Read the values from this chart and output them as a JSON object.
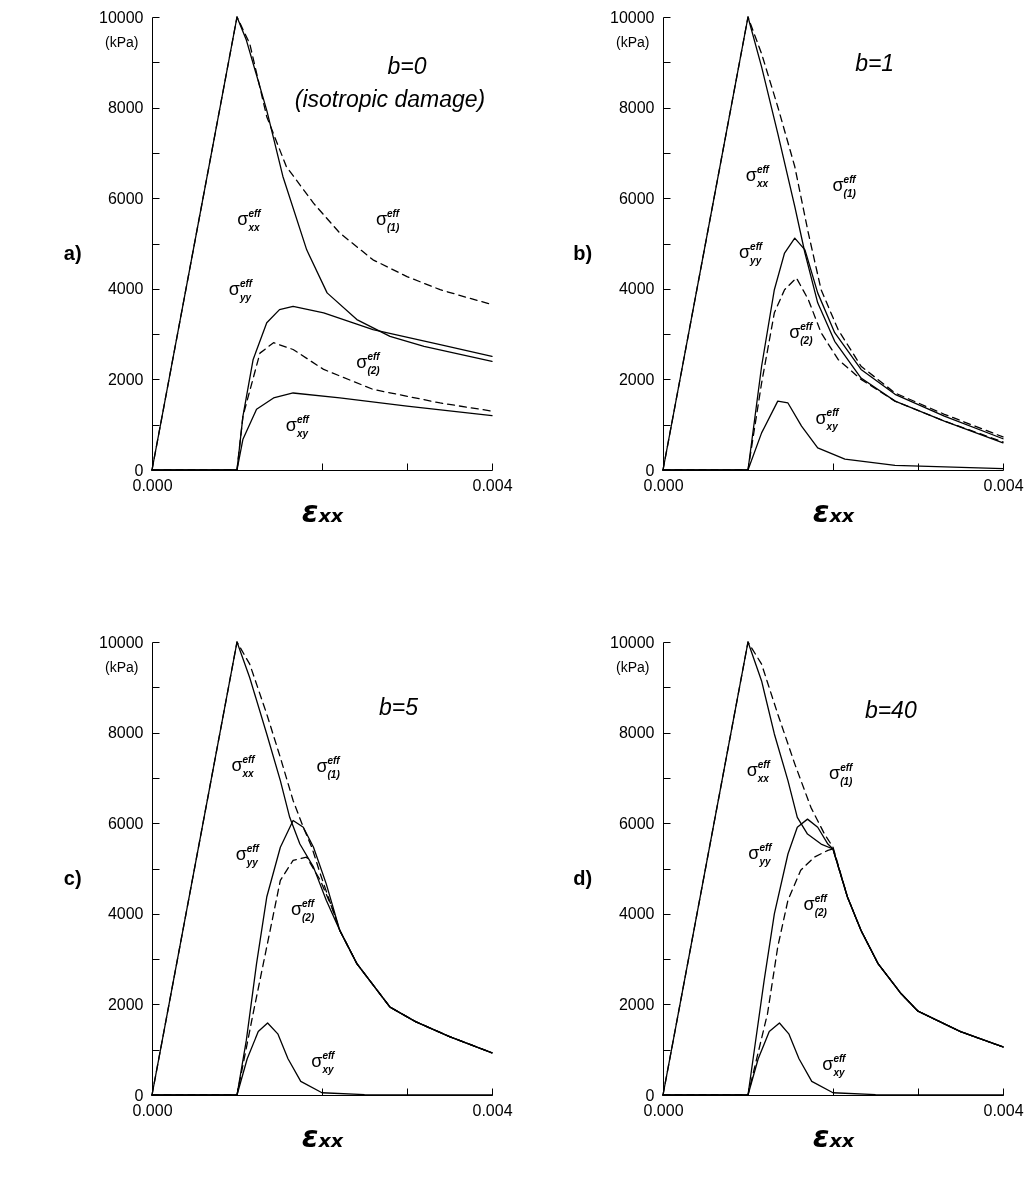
{
  "chart_data": [
    {
      "type": "line",
      "title": "a)",
      "xlabel": "εₓₓ",
      "ylabel": "(kPa)",
      "xlim": [
        0,
        0.004
      ],
      "ylim": [
        0,
        10000
      ],
      "xticks": [
        {
          "value": 0,
          "label": "0.000"
        },
        {
          "value": 0.001,
          "label": null
        },
        {
          "value": 0.002,
          "label": null
        },
        {
          "value": 0.003,
          "label": null
        },
        {
          "value": 0.004,
          "label": "0.004"
        }
      ],
      "yticks": [
        0,
        {
          "value": 1000,
          "label": null
        },
        2000,
        {
          "value": 3000,
          "label": null
        },
        4000,
        {
          "value": 5000,
          "label": null
        },
        6000,
        {
          "value": 7000,
          "label": null
        },
        8000,
        {
          "value": 9000,
          "label": null
        },
        10000
      ],
      "series": [
        {
          "color": "#000000",
          "line_style": "solid",
          "x": [
            0,
            0.001,
            0.00111,
            0.00135,
            0.00154,
            0.00182,
            0.00206,
            0.00241,
            0.0028,
            0.0032,
            0.004
          ],
          "values": [
            0,
            10000,
            9490,
            7940,
            6480,
            4860,
            3910,
            3320,
            2950,
            2730,
            2400
          ]
        },
        {
          "color": "#000000",
          "line_style": "dashed",
          "x": [
            0,
            0.001,
            0.00115,
            0.00135,
            0.00158,
            0.0019,
            0.00221,
            0.0026,
            0.003,
            0.00339,
            0.004
          ],
          "values": [
            0,
            10000,
            9410,
            7800,
            6700,
            5890,
            5230,
            4640,
            4270,
            3980,
            3650
          ]
        },
        {
          "color": "#000000",
          "line_style": "solid",
          "x": [
            0,
            0.001,
            0.00107,
            0.00119,
            0.00135,
            0.0015,
            0.00166,
            0.00202,
            0.0026,
            0.00339,
            0.004
          ],
          "values": [
            0,
            0,
            1190,
            2440,
            3250,
            3540,
            3610,
            3470,
            3100,
            2770,
            2510
          ]
        },
        {
          "color": "#000000",
          "line_style": "dashed",
          "x": [
            0,
            0.001,
            0.00107,
            0.00127,
            0.00143,
            0.00166,
            0.00202,
            0.0026,
            0.00339,
            0.004
          ],
          "values": [
            0,
            0,
            1190,
            2580,
            2810,
            2660,
            2220,
            1780,
            1480,
            1300
          ]
        },
        {
          "color": "#000000",
          "line_style": "solid",
          "x": [
            0,
            0.001,
            0.00107,
            0.00123,
            0.00143,
            0.00166,
            0.00221,
            0.003,
            0.004
          ],
          "values": [
            0,
            0,
            680,
            1340,
            1590,
            1700,
            1590,
            1410,
            1200
          ]
        }
      ],
      "annotations": [
        "b=0",
        "(isotropic damage)",
        "σ$^{eff}$$_{xx}$",
        "σ$^{eff}$$_{(1)}$",
        "σ$^{eff}$$_{yy}$",
        "σ$^{eff}$$_{(2)}$",
        "σ$^{eff}$$_{xy}$"
      ]
    },
    {
      "type": "line",
      "title": "b)",
      "xlabel": "εₓₓ",
      "ylabel": "(kPa)",
      "xlim": [
        0,
        0.004
      ],
      "ylim": [
        0,
        10000
      ],
      "xticks": [
        {
          "value": 0,
          "label": "0.000"
        },
        {
          "value": 0.001,
          "label": null
        },
        {
          "value": 0.002,
          "label": null
        },
        {
          "value": 0.003,
          "label": null
        },
        {
          "value": 0.004,
          "label": "0.004"
        }
      ],
      "yticks": [
        0,
        {
          "value": 1000,
          "label": null
        },
        2000,
        {
          "value": 3000,
          "label": null
        },
        4000,
        {
          "value": 5000,
          "label": null
        },
        6000,
        {
          "value": 7000,
          "label": null
        },
        8000,
        {
          "value": 9000,
          "label": null
        },
        10000
      ],
      "series": [
        {
          "color": "#000000",
          "line_style": "solid",
          "x": [
            0,
            0.001,
            0.00116,
            0.00135,
            0.00155,
            0.00167,
            0.00182,
            0.00202,
            0.00233,
            0.00273,
            0.00331,
            0.004
          ],
          "values": [
            0,
            10000,
            8900,
            7430,
            5820,
            4790,
            3690,
            2840,
            2030,
            1520,
            1080,
            600
          ]
        },
        {
          "color": "#000000",
          "line_style": "dashed",
          "x": [
            0,
            0.001,
            0.00116,
            0.00135,
            0.00155,
            0.00171,
            0.00186,
            0.00206,
            0.00233,
            0.00273,
            0.00331,
            0.004
          ],
          "values": [
            0,
            10000,
            9190,
            8020,
            6700,
            5230,
            3980,
            3100,
            2290,
            1700,
            1230,
            730
          ]
        },
        {
          "color": "#000000",
          "line_style": "solid",
          "x": [
            0,
            0.001,
            0.00116,
            0.00131,
            0.00143,
            0.00155,
            0.00167,
            0.00182,
            0.00202,
            0.00233,
            0.00273,
            0.00331,
            0.004
          ],
          "values": [
            0,
            0,
            2290,
            3980,
            4790,
            5120,
            4860,
            3910,
            3030,
            2220,
            1670,
            1190,
            690
          ]
        },
        {
          "color": "#000000",
          "line_style": "dashed",
          "x": [
            0,
            0.001,
            0.00116,
            0.00131,
            0.00143,
            0.00157,
            0.00171,
            0.00186,
            0.00206,
            0.00233,
            0.00273,
            0.00331,
            0.004
          ],
          "values": [
            0,
            0,
            1920,
            3470,
            3980,
            4240,
            3760,
            3030,
            2440,
            2000,
            1520,
            1080,
            620
          ]
        },
        {
          "color": "#000000",
          "line_style": "solid",
          "x": [
            0,
            0.001,
            0.00116,
            0.00135,
            0.00147,
            0.00163,
            0.00182,
            0.00214,
            0.00273,
            0.004
          ],
          "values": [
            0,
            0,
            820,
            1520,
            1480,
            970,
            490,
            240,
            100,
            30
          ]
        }
      ],
      "annotations": [
        "b=1",
        "σ$^{eff}$$_{xx}$",
        "σ$^{eff}$$_{(1)}$",
        "σ$^{eff}$$_{yy}$",
        "σ$^{eff}$$_{(2)}$",
        "σ$^{eff}$$_{xy}$"
      ]
    },
    {
      "type": "line",
      "title": "c)",
      "xlabel": "εₓₓ",
      "ylabel": "(kPa)",
      "xlim": [
        0,
        0.004
      ],
      "ylim": [
        0,
        10000
      ],
      "xticks": [
        {
          "value": 0,
          "label": "0.000"
        },
        {
          "value": 0.001,
          "label": null
        },
        {
          "value": 0.002,
          "label": null
        },
        {
          "value": 0.003,
          "label": null
        },
        {
          "value": 0.004,
          "label": "0.004"
        }
      ],
      "yticks": [
        0,
        {
          "value": 1000,
          "label": null
        },
        2000,
        {
          "value": 3000,
          "label": null
        },
        4000,
        {
          "value": 5000,
          "label": null
        },
        6000,
        {
          "value": 7000,
          "label": null
        },
        8000,
        {
          "value": 9000,
          "label": null
        },
        10000
      ],
      "series": [
        {
          "color": "#000000",
          "line_style": "solid",
          "x": [
            0,
            0.001,
            0.00115,
            0.00135,
            0.00151,
            0.00162,
            0.00174,
            0.0019,
            0.00205,
            0.00221,
            0.00241,
            0.0028,
            0.0031,
            0.0035,
            0.004
          ],
          "values": [
            0,
            10000,
            9210,
            7970,
            6940,
            6130,
            5540,
            5030,
            4300,
            3630,
            2900,
            1940,
            1620,
            1290,
            930
          ]
        },
        {
          "color": "#000000",
          "line_style": "dashed",
          "x": [
            0,
            0.001,
            0.00115,
            0.00135,
            0.00151,
            0.00166,
            0.00178,
            0.00188,
            0.00198,
            0.00221,
            0.00241,
            0.0028,
            0.0031,
            0.0035,
            0.004
          ],
          "values": [
            0,
            10000,
            9510,
            8410,
            7450,
            6500,
            5910,
            5470,
            4880,
            3630,
            2900,
            1940,
            1620,
            1290,
            930
          ]
        },
        {
          "color": "#000000",
          "line_style": "solid",
          "x": [
            0,
            0.001,
            0.00111,
            0.00123,
            0.00135,
            0.00151,
            0.00166,
            0.00178,
            0.0019,
            0.00205,
            0.00221,
            0.00241,
            0.0028,
            0.0031,
            0.0035,
            0.004
          ],
          "values": [
            0,
            0,
            1210,
            2900,
            4370,
            5470,
            6060,
            5910,
            5470,
            4660,
            3630,
            2900,
            1940,
            1620,
            1290,
            930
          ]
        },
        {
          "color": "#000000",
          "line_style": "dashed",
          "x": [
            0,
            0.001,
            0.00119,
            0.00135,
            0.00151,
            0.00166,
            0.00182,
            0.00198,
            0.00213,
            0.00221,
            0.00241,
            0.0028,
            0.0031,
            0.0035,
            0.004
          ],
          "values": [
            0,
            0,
            1800,
            3270,
            4740,
            5180,
            5250,
            4740,
            4080,
            3630,
            2900,
            1940,
            1620,
            1290,
            930
          ]
        },
        {
          "color": "#000000",
          "line_style": "solid",
          "x": [
            0,
            0.001,
            0.00112,
            0.00125,
            0.00136,
            0.00148,
            0.0016,
            0.00175,
            0.002,
            0.0025,
            0.004
          ],
          "values": [
            0,
            0,
            800,
            1400,
            1590,
            1350,
            800,
            300,
            50,
            10,
            0
          ]
        }
      ],
      "annotations": [
        "b=5",
        "σ$^{eff}$$_{xx}$",
        "σ$^{eff}$$_{(1)}$",
        "σ$^{eff}$$_{yy}$",
        "σ$^{eff}$$_{(2)}$",
        "σ$^{eff}$$_{xy}$"
      ]
    },
    {
      "type": "line",
      "title": "d)",
      "xlabel": "εₓₓ",
      "ylabel": "(kPa)",
      "xlim": [
        0,
        0.004
      ],
      "ylim": [
        0,
        10000
      ],
      "xticks": [
        {
          "value": 0,
          "label": "0.000"
        },
        {
          "value": 0.001,
          "label": null
        },
        {
          "value": 0.002,
          "label": null
        },
        {
          "value": 0.003,
          "label": null
        },
        {
          "value": 0.004,
          "label": "0.004"
        }
      ],
      "yticks": [
        0,
        {
          "value": 1000,
          "label": null
        },
        2000,
        {
          "value": 3000,
          "label": null
        },
        4000,
        {
          "value": 5000,
          "label": null
        },
        6000,
        {
          "value": 7000,
          "label": null
        },
        8000,
        {
          "value": 9000,
          "label": null
        },
        10000
      ],
      "series": [
        {
          "color": "#000000",
          "line_style": "solid",
          "x": [
            0,
            0.001,
            0.00116,
            0.00131,
            0.00147,
            0.00158,
            0.0017,
            0.00186,
            0.002,
            0.00217,
            0.00233,
            0.00253,
            0.0028,
            0.003,
            0.0035,
            0.004
          ],
          "values": [
            0,
            10000,
            9140,
            7970,
            6940,
            6130,
            5760,
            5540,
            5430,
            4370,
            3630,
            2900,
            2240,
            1850,
            1400,
            1060
          ]
        },
        {
          "color": "#000000",
          "line_style": "dashed",
          "x": [
            0,
            0.001,
            0.00116,
            0.00135,
            0.00155,
            0.00174,
            0.0019,
            0.002,
            0.00217,
            0.00233,
            0.00253,
            0.0028,
            0.003,
            0.0035,
            0.004
          ],
          "values": [
            0,
            10000,
            9510,
            8410,
            7310,
            6350,
            5760,
            5470,
            4370,
            3630,
            2900,
            2240,
            1850,
            1400,
            1060
          ]
        },
        {
          "color": "#000000",
          "line_style": "solid",
          "x": [
            0,
            0.001,
            0.00119,
            0.00131,
            0.00147,
            0.00158,
            0.0017,
            0.00182,
            0.00194,
            0.002,
            0.00217,
            0.00233,
            0.00253,
            0.0028,
            0.003,
            0.0035,
            0.004
          ],
          "values": [
            0,
            0,
            2530,
            4000,
            5320,
            5910,
            6090,
            5910,
            5540,
            5430,
            4370,
            3630,
            2900,
            2240,
            1850,
            1400,
            1060
          ]
        },
        {
          "color": "#000000",
          "line_style": "dashed",
          "x": [
            0,
            0.001,
            0.00123,
            0.00135,
            0.00147,
            0.00162,
            0.00178,
            0.00194,
            0.002,
            0.00217,
            0.00233,
            0.00253,
            0.0028,
            0.003,
            0.0035,
            0.004
          ],
          "values": [
            0,
            0,
            1800,
            3270,
            4300,
            4960,
            5250,
            5400,
            5430,
            4370,
            3630,
            2900,
            2240,
            1850,
            1400,
            1060
          ]
        },
        {
          "color": "#000000",
          "line_style": "solid",
          "x": [
            0,
            0.001,
            0.00112,
            0.00125,
            0.00137,
            0.00148,
            0.0016,
            0.00175,
            0.002,
            0.0025,
            0.004
          ],
          "values": [
            0,
            0,
            800,
            1400,
            1590,
            1350,
            800,
            300,
            50,
            10,
            0
          ]
        }
      ],
      "annotations": [
        "b=40",
        "σ$^{eff}$$_{xx}$",
        "σ$^{eff}$$_{(1)}$",
        "σ$^{eff}$$_{yy}$",
        "σ$^{eff}$$_{(2)}$",
        "σ$^{eff}$$_{xy}$"
      ]
    }
  ]
}
